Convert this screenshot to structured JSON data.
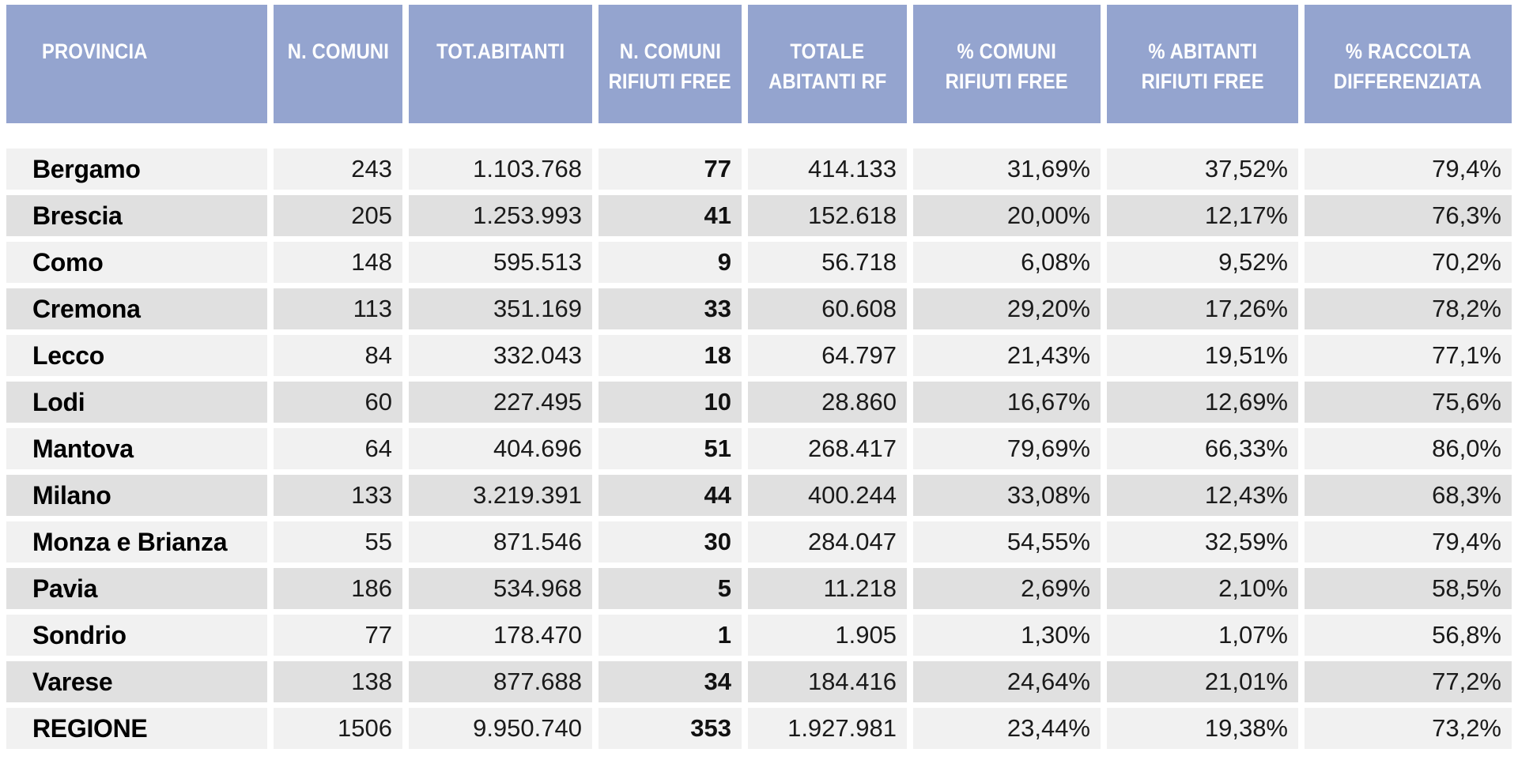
{
  "colors": {
    "page_bg": "#ffffff",
    "header_bg": "#94a4cf",
    "header_text": "#ffffff",
    "row_light": "#f1f1f1",
    "row_dark": "#e0e0e0",
    "body_text": "#1a1a1a"
  },
  "chart_data": {
    "type": "table",
    "columns": [
      {
        "line1": "PROVINCIA",
        "line2": ""
      },
      {
        "line1": "N. COMUNI",
        "line2": ""
      },
      {
        "line1": "TOT.ABITANTI",
        "line2": ""
      },
      {
        "line1": "N. COMUNI",
        "line2": "RIFIUTI FREE"
      },
      {
        "line1": "TOTALE",
        "line2": "ABITANTI RF"
      },
      {
        "line1": "% COMUNI",
        "line2": "RIFIUTI FREE"
      },
      {
        "line1": "% ABITANTI",
        "line2": "RIFIUTI FREE"
      },
      {
        "line1": "% RACCOLTA",
        "line2": "DIFFERENZIATA"
      }
    ],
    "rows": [
      [
        "Bergamo",
        "243",
        "1.103.768",
        "77",
        "414.133",
        "31,69%",
        "37,52%",
        "79,4%"
      ],
      [
        "Brescia",
        "205",
        "1.253.993",
        "41",
        "152.618",
        "20,00%",
        "12,17%",
        "76,3%"
      ],
      [
        "Como",
        "148",
        "595.513",
        "9",
        "56.718",
        "6,08%",
        "9,52%",
        "70,2%"
      ],
      [
        "Cremona",
        "113",
        "351.169",
        "33",
        "60.608",
        "29,20%",
        "17,26%",
        "78,2%"
      ],
      [
        "Lecco",
        "84",
        "332.043",
        "18",
        "64.797",
        "21,43%",
        "19,51%",
        "77,1%"
      ],
      [
        "Lodi",
        "60",
        "227.495",
        "10",
        "28.860",
        "16,67%",
        "12,69%",
        "75,6%"
      ],
      [
        "Mantova",
        "64",
        "404.696",
        "51",
        "268.417",
        "79,69%",
        "66,33%",
        "86,0%"
      ],
      [
        "Milano",
        "133",
        "3.219.391",
        "44",
        "400.244",
        "33,08%",
        "12,43%",
        "68,3%"
      ],
      [
        "Monza e Brianza",
        "55",
        "871.546",
        "30",
        "284.047",
        "54,55%",
        "32,59%",
        "79,4%"
      ],
      [
        "Pavia",
        "186",
        "534.968",
        "5",
        "11.218",
        "2,69%",
        "2,10%",
        "58,5%"
      ],
      [
        "Sondrio",
        "77",
        "178.470",
        "1",
        "1.905",
        "1,30%",
        "1,07%",
        "56,8%"
      ],
      [
        "Varese",
        "138",
        "877.688",
        "34",
        "184.416",
        "24,64%",
        "21,01%",
        "77,2%"
      ],
      [
        "REGIONE",
        "1506",
        "9.950.740",
        "353",
        "1.927.981",
        "23,44%",
        "19,38%",
        "73,2%"
      ]
    ]
  }
}
